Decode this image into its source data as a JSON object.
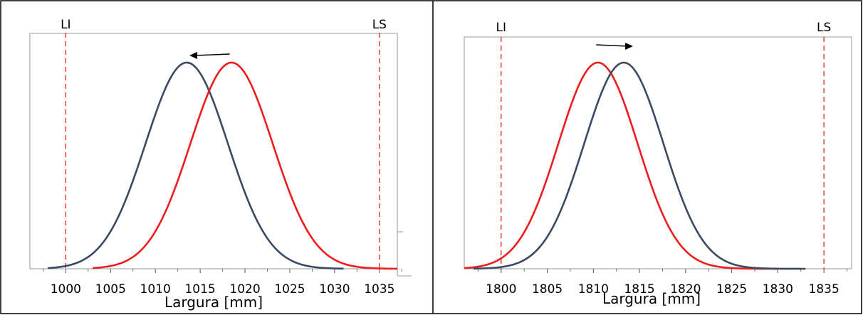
{
  "chart_data": [
    {
      "type": "line",
      "title": "",
      "xlabel": "Largura [mm]",
      "ylabel": "",
      "xlim": [
        996,
        1037
      ],
      "ylim": [
        0,
        1.1
      ],
      "x_ticks": [
        1000,
        1005,
        1010,
        1015,
        1020,
        1025,
        1030,
        1035
      ],
      "grid": false,
      "spec_limits": [
        {
          "label": "LI",
          "value": 1000,
          "color": "#e8302f"
        },
        {
          "label": "LS",
          "value": 1035,
          "color": "#e8302f"
        }
      ],
      "shift_arrow": {
        "direction": "left",
        "from": 1018.3,
        "to": 1013.8
      },
      "series": [
        {
          "mean": 1013.5,
          "sd": 4.6,
          "range": [
            998,
            1031
          ],
          "color": "#3b4a63"
        },
        {
          "mean": 1018.5,
          "sd": 4.6,
          "range": [
            1003,
            1037
          ],
          "color": "#ee1c1c"
        }
      ]
    },
    {
      "type": "line",
      "title": "",
      "xlabel": "Largura [mm]",
      "ylabel": "",
      "xlim": [
        1796,
        1838
      ],
      "ylim": [
        0,
        1.1
      ],
      "x_ticks": [
        1800,
        1805,
        1810,
        1815,
        1820,
        1825,
        1830,
        1835
      ],
      "grid": false,
      "spec_limits": [
        {
          "label": "LI",
          "value": 1800,
          "color": "#e8302f"
        },
        {
          "label": "LS",
          "value": 1835,
          "color": "#e8302f"
        }
      ],
      "shift_arrow": {
        "direction": "right",
        "from": 1810.3,
        "to": 1814.3
      },
      "series": [
        {
          "mean": 1810.5,
          "sd": 4.3,
          "range": [
            1796,
            1830
          ],
          "color": "#ee1c1c"
        },
        {
          "mean": 1813.3,
          "sd": 4.3,
          "range": [
            1797,
            1833
          ],
          "color": "#3b4a63"
        }
      ]
    }
  ]
}
